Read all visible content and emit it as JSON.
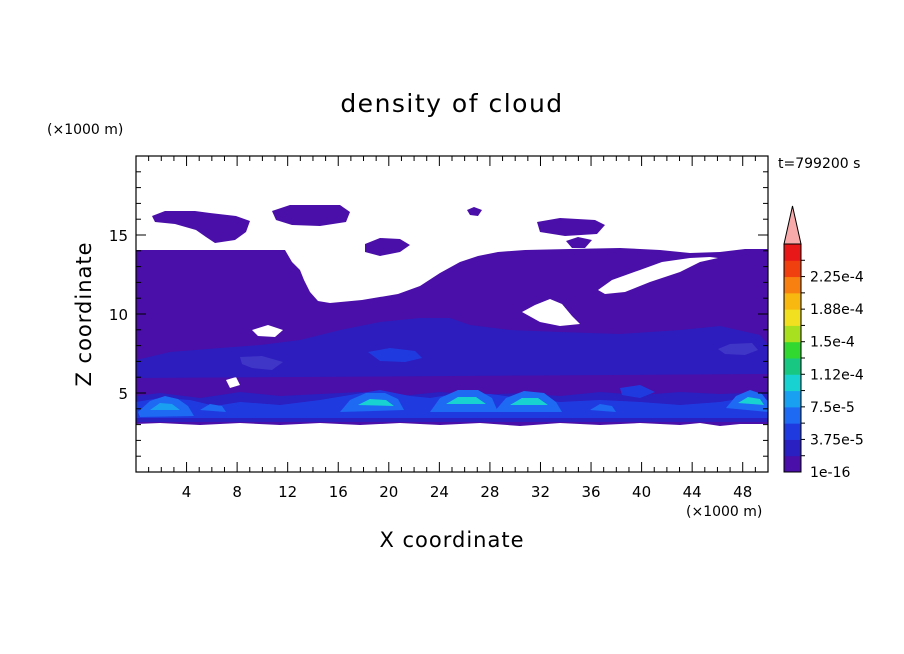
{
  "chart_data": {
    "type": "heatmap",
    "title": "density of cloud",
    "xlabel": "X coordinate",
    "ylabel": "Z coordinate",
    "x_unit": "(×1000 m)",
    "y_unit": "(×1000 m)",
    "time_label": "t=799200 s",
    "xlim": [
      0,
      50
    ],
    "ylim": [
      0,
      20
    ],
    "x_ticks": [
      "4",
      "8",
      "12",
      "16",
      "20",
      "24",
      "28",
      "32",
      "36",
      "40",
      "44",
      "48"
    ],
    "y_ticks": [
      "5",
      "10",
      "15"
    ],
    "colorbar": {
      "levels": [
        "1e-16",
        "3.75e-5",
        "7.5e-5",
        "1.12e-4",
        "1.5e-4",
        "1.88e-4",
        "2.25e-4"
      ],
      "colors": [
        "#4a0fa8",
        "#2a1fc0",
        "#1f3be0",
        "#1e6af2",
        "#1aa0f0",
        "#18d2d2",
        "#18c882",
        "#30d830",
        "#a8e020",
        "#f0e020",
        "#f8b810",
        "#f88010",
        "#f04010",
        "#e81818"
      ],
      "extend_color": "#f8aaaa"
    },
    "cloud_layer": {
      "base_km": 3.3,
      "top_km": 14.0,
      "isolated_top_km": 16.8
    },
    "dense_cores": [
      {
        "x_km": 2.5,
        "z_km": 4.4,
        "level": "7.5e-5"
      },
      {
        "x_km": 18.5,
        "z_km": 4.5,
        "level": "1.12e-4"
      },
      {
        "x_km": 25.5,
        "z_km": 4.6,
        "level": "1.12e-4"
      },
      {
        "x_km": 29.5,
        "z_km": 4.5,
        "level": "1.12e-4"
      },
      {
        "x_km": 47.5,
        "z_km": 4.7,
        "level": "1.12e-4"
      }
    ]
  }
}
